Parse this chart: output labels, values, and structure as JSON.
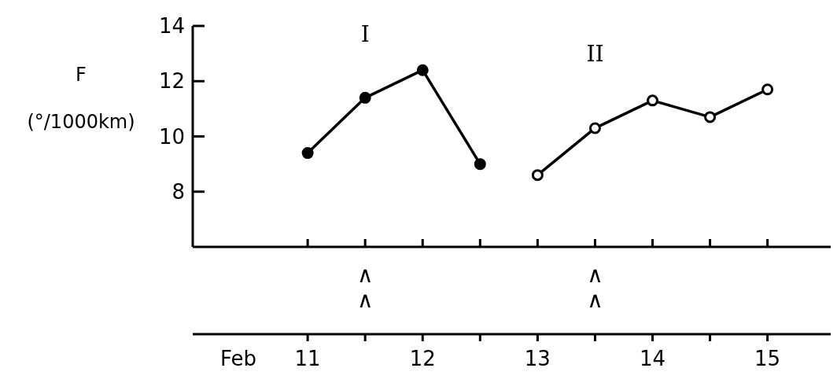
{
  "chart_data": {
    "type": "line",
    "xlabel": "Feb",
    "ylabel": "F\n(°/1000km)",
    "xlim": [
      10,
      15.55
    ],
    "xticks": [
      {
        "value": 11,
        "label": "11"
      },
      {
        "value": 11.5,
        "label": null
      },
      {
        "value": 12,
        "label": "12"
      },
      {
        "value": 12.5,
        "label": null
      },
      {
        "value": 13,
        "label": "13"
      },
      {
        "value": 13.5,
        "label": null
      },
      {
        "value": 14,
        "label": "14"
      },
      {
        "value": 14.5,
        "label": null
      },
      {
        "value": 15,
        "label": "15"
      }
    ],
    "ylim": [
      6,
      14
    ],
    "yticks": [
      8,
      10,
      12,
      14
    ],
    "marker": "circle",
    "line_style": "solid",
    "series": [
      {
        "name": "I",
        "color": "#000000",
        "x": [
          11,
          11.5,
          12,
          12.5
        ],
        "values": [
          9.4,
          11.4,
          12.4,
          9.0
        ]
      },
      {
        "name": "II",
        "color": "#000000",
        "x": [
          13,
          13.5,
          14,
          14.5,
          15
        ],
        "values": [
          8.6,
          10.3,
          11.3,
          10.7,
          11.7
        ]
      }
    ],
    "annotations": [
      {
        "text": "∧∧",
        "x": 11.5
      },
      {
        "text": "∧∧",
        "x": 13.5
      }
    ]
  }
}
